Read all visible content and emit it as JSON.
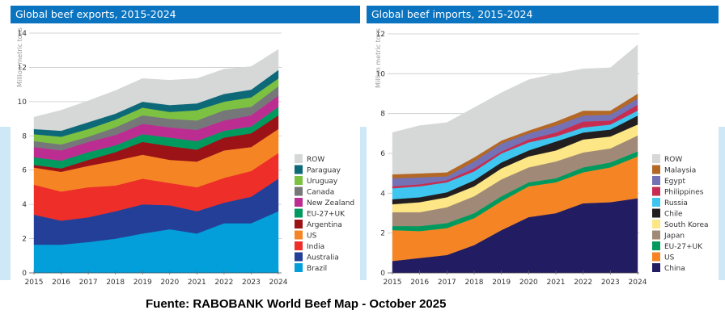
{
  "caption": "Fuente: RABOBANK World Beef Map - October 2025",
  "chart_data": [
    {
      "type": "area",
      "stacked": true,
      "title": "Global beef exports, 2015-2024",
      "xlabel": "",
      "ylabel": "Million metric tons",
      "x": [
        2015,
        2016,
        2017,
        2018,
        2019,
        2020,
        2021,
        2022,
        2023,
        2024
      ],
      "ylim": [
        0,
        14
      ],
      "yticks": [
        0,
        2,
        4,
        6,
        8,
        10,
        12,
        14
      ],
      "grid": true,
      "legend": "right",
      "series": [
        {
          "name": "Brazil",
          "color": "#029fdb",
          "values": [
            1.65,
            1.65,
            1.8,
            2.0,
            2.3,
            2.55,
            2.3,
            2.9,
            2.9,
            3.6
          ]
        },
        {
          "name": "Australia",
          "color": "#233f98",
          "values": [
            1.75,
            1.4,
            1.45,
            1.6,
            1.7,
            1.4,
            1.3,
            1.2,
            1.55,
            1.9
          ]
        },
        {
          "name": "India",
          "color": "#ed2e29",
          "values": [
            1.75,
            1.7,
            1.75,
            1.5,
            1.5,
            1.3,
            1.4,
            1.45,
            1.5,
            1.5
          ]
        },
        {
          "name": "US",
          "color": "#f58524",
          "values": [
            1.0,
            1.15,
            1.25,
            1.45,
            1.4,
            1.35,
            1.5,
            1.6,
            1.4,
            1.4
          ]
        },
        {
          "name": "Argentina",
          "color": "#9b1217",
          "values": [
            0.15,
            0.2,
            0.35,
            0.5,
            0.75,
            0.8,
            0.7,
            0.75,
            0.8,
            0.8
          ]
        },
        {
          "name": "EU-27+UK",
          "color": "#019a5e",
          "values": [
            0.45,
            0.45,
            0.45,
            0.4,
            0.45,
            0.5,
            0.5,
            0.4,
            0.4,
            0.5
          ]
        },
        {
          "name": "New Zealand",
          "color": "#bc2d91",
          "values": [
            0.6,
            0.6,
            0.6,
            0.6,
            0.6,
            0.6,
            0.65,
            0.6,
            0.65,
            0.65
          ]
        },
        {
          "name": "Canada",
          "color": "#757779",
          "values": [
            0.35,
            0.35,
            0.3,
            0.45,
            0.5,
            0.5,
            0.55,
            0.6,
            0.5,
            0.55
          ]
        },
        {
          "name": "Uruguay",
          "color": "#7cc142",
          "values": [
            0.4,
            0.45,
            0.45,
            0.45,
            0.45,
            0.4,
            0.6,
            0.5,
            0.55,
            0.45
          ]
        },
        {
          "name": "Paraguay",
          "color": "#0d6877",
          "values": [
            0.3,
            0.35,
            0.4,
            0.35,
            0.35,
            0.4,
            0.4,
            0.45,
            0.45,
            0.5
          ]
        },
        {
          "name": "ROW",
          "color": "#d6d7d7",
          "values": [
            0.7,
            1.2,
            1.25,
            1.35,
            1.35,
            1.45,
            1.45,
            1.45,
            1.35,
            1.2
          ]
        }
      ]
    },
    {
      "type": "area",
      "stacked": true,
      "title": "Global beef imports, 2015-2024",
      "xlabel": "",
      "ylabel": "Million metric tons",
      "x": [
        2015,
        2016,
        2017,
        2018,
        2019,
        2020,
        2021,
        2022,
        2023,
        2024
      ],
      "ylim": [
        0,
        12
      ],
      "yticks": [
        0,
        2,
        4,
        6,
        8,
        10,
        12
      ],
      "grid": true,
      "legend": "right",
      "series": [
        {
          "name": "China",
          "color": "#221d63",
          "values": [
            0.6,
            0.75,
            0.9,
            1.4,
            2.15,
            2.8,
            3.0,
            3.5,
            3.55,
            3.75
          ]
        },
        {
          "name": "US",
          "color": "#f58524",
          "values": [
            1.55,
            1.35,
            1.35,
            1.35,
            1.45,
            1.55,
            1.55,
            1.55,
            1.75,
            2.1
          ]
        },
        {
          "name": "EU-27+UK",
          "color": "#019a5e",
          "values": [
            0.2,
            0.25,
            0.25,
            0.25,
            0.25,
            0.2,
            0.2,
            0.25,
            0.25,
            0.25
          ]
        },
        {
          "name": "Japan",
          "color": "#a08a77",
          "values": [
            0.7,
            0.7,
            0.8,
            0.85,
            0.85,
            0.75,
            0.85,
            0.75,
            0.7,
            0.8
          ]
        },
        {
          "name": "South Korea",
          "color": "#fde685",
          "values": [
            0.4,
            0.5,
            0.5,
            0.5,
            0.55,
            0.55,
            0.55,
            0.65,
            0.6,
            0.55
          ]
        },
        {
          "name": "Chile",
          "color": "#231f20",
          "values": [
            0.25,
            0.25,
            0.25,
            0.3,
            0.3,
            0.3,
            0.45,
            0.35,
            0.35,
            0.45
          ]
        },
        {
          "name": "Russia",
          "color": "#3ec6f0",
          "values": [
            0.55,
            0.55,
            0.5,
            0.45,
            0.45,
            0.4,
            0.25,
            0.25,
            0.25,
            0.25
          ]
        },
        {
          "name": "Philippines",
          "color": "#c72d51",
          "values": [
            0.1,
            0.1,
            0.1,
            0.15,
            0.1,
            0.15,
            0.2,
            0.3,
            0.2,
            0.3
          ]
        },
        {
          "name": "Egypt",
          "color": "#7471b5",
          "values": [
            0.4,
            0.35,
            0.2,
            0.35,
            0.4,
            0.3,
            0.35,
            0.3,
            0.3,
            0.3
          ]
        },
        {
          "name": "Malaysia",
          "color": "#b36826",
          "values": [
            0.2,
            0.2,
            0.2,
            0.2,
            0.15,
            0.15,
            0.2,
            0.25,
            0.2,
            0.25
          ]
        },
        {
          "name": "ROW",
          "color": "#d6d7d7",
          "values": [
            2.1,
            2.4,
            2.5,
            2.5,
            2.4,
            2.55,
            2.4,
            2.1,
            2.15,
            2.45
          ]
        }
      ]
    }
  ]
}
